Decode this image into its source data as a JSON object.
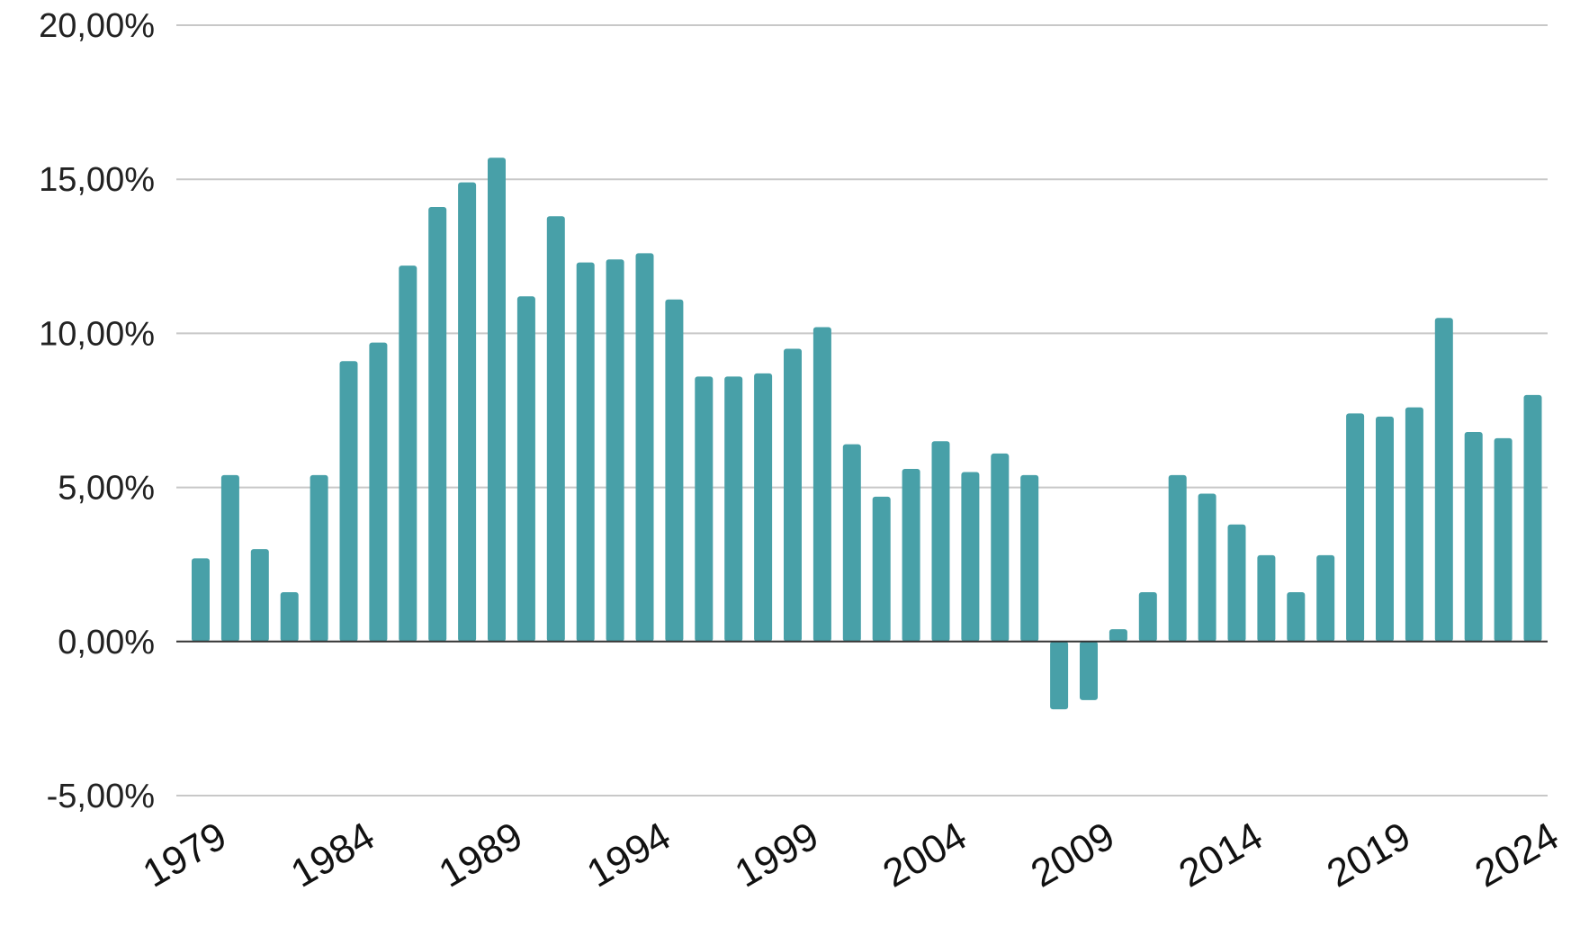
{
  "chart_data": {
    "type": "bar",
    "title": "",
    "xlabel": "",
    "ylabel": "",
    "bar_color": "#48a0a8",
    "grid": true,
    "ylim": [
      -5,
      20
    ],
    "yticks": [
      {
        "value": 20,
        "label": "20,00%"
      },
      {
        "value": 15,
        "label": "15,00%"
      },
      {
        "value": 10,
        "label": "10,00%"
      },
      {
        "value": 5,
        "label": "5,00%"
      },
      {
        "value": 0,
        "label": "0,00%"
      },
      {
        "value": -5,
        "label": "-5,00%"
      }
    ],
    "xtick_labels": [
      "1979",
      "1984",
      "1989",
      "1994",
      "1999",
      "2004",
      "2009",
      "2014",
      "2019",
      "2024"
    ],
    "categories": [
      "1979",
      "1980",
      "1981",
      "1982",
      "1983",
      "1984",
      "1985",
      "1986",
      "1987",
      "1988",
      "1989",
      "1990",
      "1991",
      "1992",
      "1993",
      "1994",
      "1995",
      "1996",
      "1997",
      "1998",
      "1999",
      "2000",
      "2001",
      "2002",
      "2003",
      "2004",
      "2005",
      "2006",
      "2007",
      "2008",
      "2009",
      "2010",
      "2011",
      "2012",
      "2013",
      "2014",
      "2015",
      "2016",
      "2017",
      "2018",
      "2019",
      "2020",
      "2021",
      "2022",
      "2023",
      "2024"
    ],
    "values": [
      2.7,
      5.4,
      3.0,
      1.6,
      5.4,
      9.1,
      9.7,
      12.2,
      14.1,
      14.9,
      15.7,
      11.2,
      13.8,
      12.3,
      12.4,
      12.6,
      11.1,
      8.6,
      8.6,
      8.7,
      9.5,
      10.2,
      6.4,
      4.7,
      5.6,
      6.5,
      5.5,
      6.1,
      5.4,
      -2.2,
      -1.9,
      0.4,
      1.6,
      5.4,
      4.8,
      3.8,
      2.8,
      1.6,
      2.8,
      7.4,
      7.3,
      7.6,
      10.5,
      6.8,
      6.6,
      8.0
    ]
  }
}
